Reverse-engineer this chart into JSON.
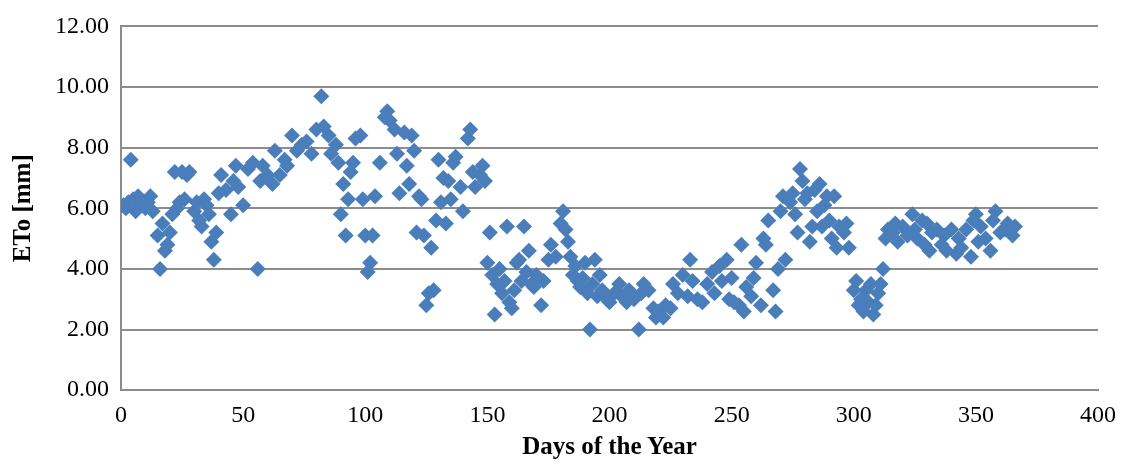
{
  "chart_data": {
    "type": "scatter",
    "xlabel": "Days of the Year",
    "ylabel": "ETo [mm]",
    "xlim": [
      0,
      400
    ],
    "xticks": [
      0,
      50,
      100,
      150,
      200,
      250,
      300,
      350,
      400
    ],
    "ylim": [
      0,
      12
    ],
    "yticks": [
      {
        "value": 0,
        "label": "0.00"
      },
      {
        "value": 2,
        "label": "2.00"
      },
      {
        "value": 4,
        "label": "4.00"
      },
      {
        "value": 6,
        "label": "6.00"
      },
      {
        "value": 8,
        "label": "8.00"
      },
      {
        "value": 10,
        "label": "10.00"
      },
      {
        "value": 12,
        "label": "12.00"
      }
    ],
    "grid": "y",
    "legend": false,
    "marker": "diamond",
    "series": [
      {
        "color": "#4a7ebb",
        "x": [
          1,
          2,
          3,
          4,
          5,
          6,
          7,
          8,
          10,
          11,
          12,
          13,
          15,
          16,
          17,
          18,
          19,
          20,
          21,
          22,
          23,
          24,
          25,
          26,
          27,
          28,
          30,
          31,
          32,
          33,
          34,
          35,
          36,
          37,
          38,
          39,
          40,
          41,
          43,
          45,
          46,
          47,
          48,
          50,
          52,
          54,
          56,
          57,
          58,
          60,
          62,
          63,
          65,
          67,
          68,
          70,
          72,
          74,
          76,
          78,
          80,
          82,
          83,
          85,
          86,
          88,
          89,
          90,
          91,
          92,
          93,
          94,
          95,
          96,
          98,
          99,
          100,
          101,
          102,
          103,
          104,
          106,
          108,
          109,
          110,
          112,
          113,
          114,
          116,
          117,
          118,
          119,
          120,
          121,
          122,
          123,
          124,
          125,
          126,
          127,
          128,
          129,
          130,
          131,
          132,
          133,
          134,
          135,
          136,
          137,
          139,
          140,
          142,
          143,
          144,
          145,
          147,
          148,
          149,
          150,
          151,
          152,
          153,
          154,
          155,
          156,
          157,
          158,
          159,
          160,
          161,
          162,
          163,
          164,
          165,
          166,
          167,
          168,
          169,
          170,
          172,
          173,
          175,
          176,
          178,
          180,
          181,
          182,
          183,
          184,
          185,
          186,
          187,
          188,
          189,
          190,
          191,
          192,
          193,
          194,
          195,
          196,
          197,
          199,
          200,
          202,
          204,
          205,
          207,
          208,
          210,
          212,
          213,
          214,
          216,
          218,
          219,
          220,
          222,
          223,
          225,
          226,
          228,
          230,
          232,
          233,
          234,
          236,
          238,
          240,
          242,
          243,
          245,
          246,
          248,
          249,
          250,
          251,
          253,
          254,
          255,
          256,
          258,
          259,
          260,
          262,
          263,
          264,
          265,
          267,
          268,
          269,
          270,
          271,
          272,
          274,
          275,
          276,
          277,
          278,
          279,
          280,
          281,
          282,
          283,
          284,
          285,
          286,
          287,
          288,
          289,
          290,
          291,
          292,
          293,
          294,
          296,
          297,
          298,
          300,
          301,
          302,
          303,
          304,
          305,
          306,
          307,
          308,
          309,
          310,
          311,
          312,
          313,
          314,
          316,
          317,
          318,
          320,
          322,
          324,
          325,
          326,
          328,
          329,
          330,
          331,
          332,
          334,
          336,
          337,
          338,
          340,
          342,
          343,
          344,
          346,
          348,
          349,
          350,
          351,
          352,
          354,
          356,
          357,
          358,
          360,
          362,
          363,
          365,
          366
        ],
        "values": [
          6.1,
          6.0,
          6.2,
          7.6,
          6.3,
          5.9,
          6.4,
          6.1,
          6.0,
          6.2,
          6.4,
          5.9,
          5.1,
          4.0,
          5.5,
          4.6,
          4.8,
          5.2,
          5.8,
          7.2,
          6.0,
          6.2,
          7.2,
          6.3,
          7.1,
          7.2,
          5.9,
          6.2,
          5.6,
          5.4,
          6.3,
          6.1,
          5.8,
          4.9,
          4.3,
          5.2,
          6.5,
          7.1,
          6.6,
          5.8,
          6.9,
          7.4,
          6.7,
          6.1,
          7.3,
          7.5,
          4.0,
          6.9,
          7.4,
          7.1,
          6.8,
          7.9,
          7.1,
          7.6,
          7.4,
          8.4,
          7.9,
          8.1,
          8.2,
          7.8,
          8.6,
          9.7,
          8.7,
          8.4,
          7.8,
          8.1,
          7.5,
          5.8,
          6.8,
          5.1,
          6.3,
          7.2,
          7.5,
          8.3,
          8.4,
          6.3,
          5.1,
          3.9,
          4.2,
          5.1,
          6.4,
          7.5,
          9.0,
          9.2,
          8.9,
          8.6,
          7.8,
          6.5,
          8.5,
          7.4,
          6.8,
          8.4,
          7.9,
          5.2,
          6.4,
          6.3,
          5.1,
          2.8,
          3.2,
          4.7,
          3.3,
          5.6,
          7.6,
          6.2,
          7.0,
          5.5,
          6.9,
          6.3,
          7.5,
          7.7,
          6.7,
          5.9,
          8.3,
          8.6,
          7.2,
          6.7,
          7.1,
          7.4,
          6.9,
          4.2,
          5.2,
          3.8,
          2.5,
          3.5,
          4.0,
          3.2,
          3.6,
          5.4,
          2.9,
          2.7,
          3.3,
          4.2,
          4.3,
          3.6,
          5.4,
          3.9,
          4.6,
          3.5,
          3.4,
          3.8,
          2.8,
          3.6,
          4.3,
          4.8,
          4.4,
          5.5,
          5.9,
          5.3,
          4.9,
          4.4,
          3.8,
          4.1,
          3.6,
          3.4,
          3.7,
          4.2,
          3.2,
          2.0,
          3.5,
          4.3,
          3.1,
          3.8,
          3.3,
          3.0,
          2.9,
          3.2,
          3.5,
          3.1,
          2.9,
          3.3,
          3.0,
          2.0,
          3.2,
          3.5,
          3.3,
          2.7,
          2.4,
          2.6,
          2.4,
          2.8,
          2.7,
          3.5,
          3.2,
          3.8,
          3.1,
          4.3,
          3.6,
          3.0,
          2.9,
          3.5,
          3.9,
          3.2,
          4.1,
          3.6,
          4.3,
          3.0,
          3.7,
          2.9,
          2.8,
          4.8,
          2.6,
          3.4,
          3.1,
          3.7,
          4.2,
          2.8,
          5.0,
          4.8,
          5.6,
          3.3,
          2.6,
          4.0,
          5.9,
          6.4,
          4.3,
          6.2,
          6.5,
          5.8,
          5.2,
          7.3,
          6.9,
          6.3,
          6.5,
          4.9,
          5.4,
          6.6,
          5.9,
          6.8,
          5.4,
          6.1,
          6.4,
          5.6,
          5.0,
          6.4,
          4.7,
          5.4,
          5.2,
          5.5,
          4.7,
          3.3,
          3.6,
          2.8,
          3.0,
          2.6,
          3.3,
          2.9,
          3.5,
          2.5,
          2.8,
          3.2,
          3.5,
          4.0,
          5.0,
          5.3,
          5.2,
          5.5,
          4.9,
          5.4,
          5.1,
          5.8,
          5.3,
          5.0,
          5.6,
          4.8,
          5.5,
          4.6,
          5.2,
          5.3,
          4.8,
          5.1,
          4.6,
          5.3,
          4.5,
          5.0,
          4.7,
          5.3,
          4.4,
          5.6,
          5.8,
          4.9,
          5.4,
          5.0,
          4.6,
          5.6,
          5.9,
          5.2,
          5.3,
          5.5,
          5.1,
          5.4
        ]
      }
    ]
  }
}
